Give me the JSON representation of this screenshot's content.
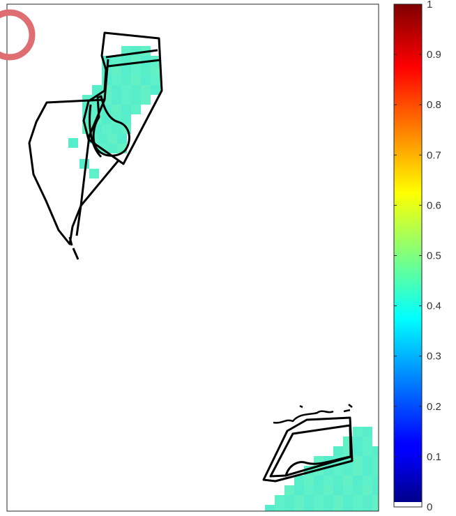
{
  "chart_data": {
    "type": "heatmap",
    "title": "",
    "xlabel": "",
    "ylabel": "",
    "axis_ticks": "none",
    "colormap": "jet",
    "colorbar": {
      "min": 0,
      "max": 1,
      "ticks": [
        "0",
        "0.1",
        "0.2",
        "0.3",
        "0.4",
        "0.5",
        "0.6",
        "0.7",
        "0.8",
        "0.9",
        "1"
      ],
      "lowest_value_color": "#ffffff"
    },
    "regions": [
      {
        "id": "north-west",
        "approx_value": 0.42,
        "cell_color": "#5ef0c8"
      },
      {
        "id": "south-east",
        "approx_value": 0.42,
        "cell_color": "#5ef0c8"
      }
    ],
    "overlay": {
      "color": "#000000",
      "description_shapes": "black boundary outlines"
    },
    "annotation_marker": {
      "shape": "ring",
      "color": "#de6e72"
    }
  }
}
